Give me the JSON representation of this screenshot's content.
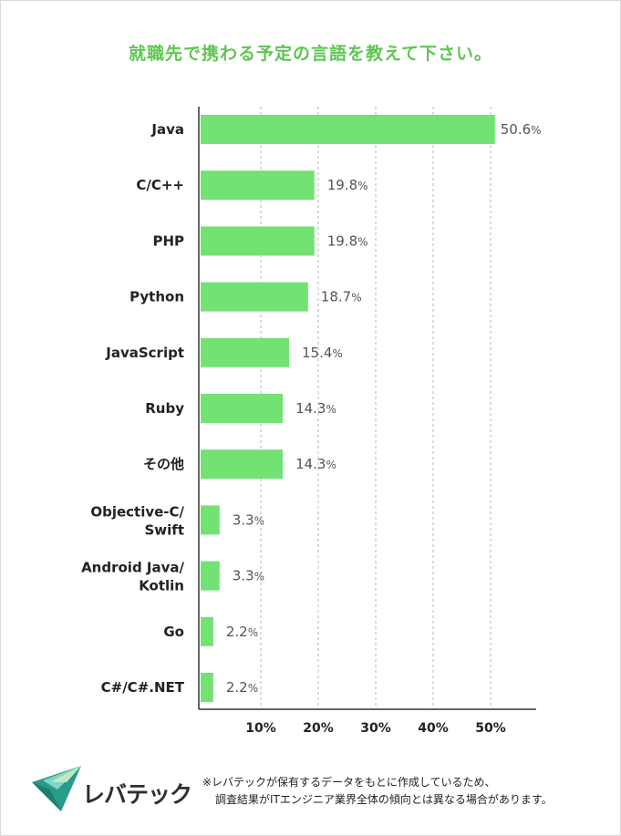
{
  "title": "就職先で携わる予定の言語を教えて下さい。",
  "chart_data": {
    "type": "bar",
    "orientation": "horizontal",
    "title": "就職先で携わる予定の言語を教えて下さい。",
    "categories": [
      [
        "Java"
      ],
      [
        "C/C++"
      ],
      [
        "PHP"
      ],
      [
        "Python"
      ],
      [
        "JavaScript"
      ],
      [
        "Ruby"
      ],
      [
        "その他"
      ],
      [
        "Objective-C/",
        "Swift"
      ],
      [
        "Android Java/",
        "Kotlin"
      ],
      [
        "Go"
      ],
      [
        "C#/C#.NET"
      ]
    ],
    "values": [
      50.6,
      19.8,
      19.8,
      18.7,
      15.4,
      14.3,
      14.3,
      3.3,
      3.3,
      2.2,
      2.2
    ],
    "value_suffix": "%",
    "x_ticks": [
      "10%",
      "20%",
      "30%",
      "40%",
      "50%"
    ],
    "x_tick_values": [
      10,
      20,
      30,
      40,
      50
    ],
    "xlim": [
      0,
      50.6
    ],
    "grid": "vertical-dashed",
    "bar_color": "#72e273",
    "axis_color": "#333333",
    "grid_color": "#b8b8b8"
  },
  "logo": {
    "name": "leverages-logo-icon",
    "text": "レバテック",
    "colors": [
      "#2a9a8a",
      "#7fd6c2",
      "#bfe9c0",
      "#3f3f3f"
    ]
  },
  "note": {
    "line1": "※レバテックが保有するデータをもとに作成しているため、",
    "line2": "調査結果がITエンジニア業界全体の傾向とは異なる場合があります。"
  }
}
